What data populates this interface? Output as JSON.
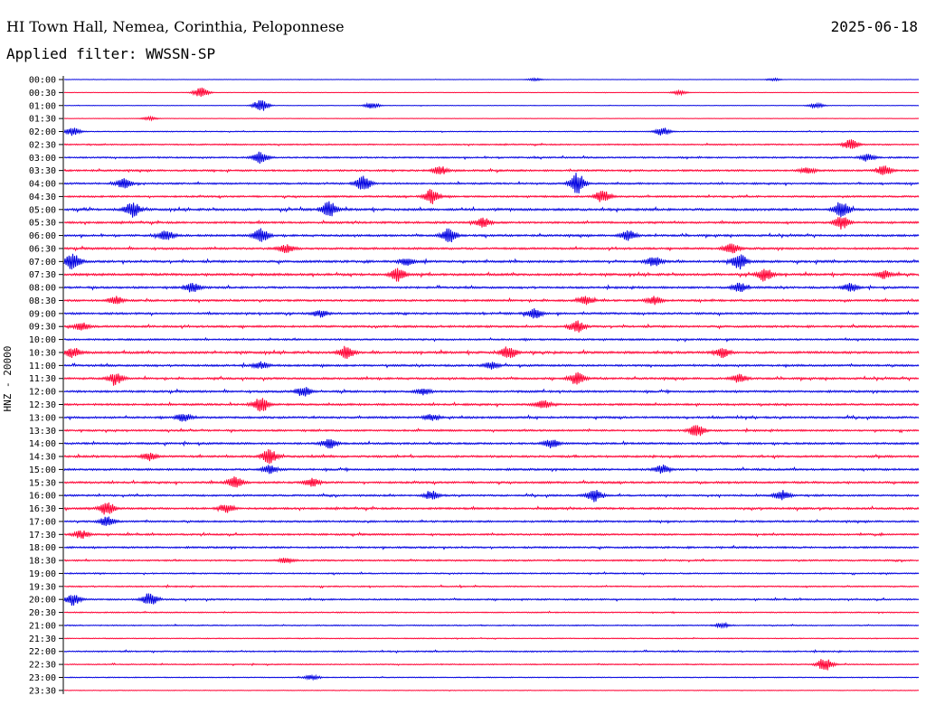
{
  "header": {
    "station": "HI Town Hall, Nemea, Corinthia, Peloponnese",
    "date": "2025-06-18",
    "filter": "Applied filter: WWSSN-SP"
  },
  "channel_label": "HNZ - 20000",
  "colors": {
    "trace_a": "#0000e0",
    "trace_b": "#ff0033",
    "background": "#ffffff",
    "text": "#000000"
  },
  "chart_data": {
    "type": "line",
    "title": "",
    "ylabel": "HNZ - 20000",
    "xlabel": "",
    "grid": false,
    "rows": [
      {
        "label": "00:00",
        "activity": 0.1,
        "events": [
          {
            "x": 0.55,
            "amp": 0.15
          },
          {
            "x": 0.83,
            "amp": 0.15
          }
        ]
      },
      {
        "label": "00:30",
        "activity": 0.1,
        "events": [
          {
            "x": 0.16,
            "amp": 0.6
          },
          {
            "x": 0.72,
            "amp": 0.25
          }
        ]
      },
      {
        "label": "01:00",
        "activity": 0.12,
        "events": [
          {
            "x": 0.23,
            "amp": 0.75
          },
          {
            "x": 0.36,
            "amp": 0.35
          },
          {
            "x": 0.88,
            "amp": 0.3
          }
        ]
      },
      {
        "label": "01:30",
        "activity": 0.12,
        "events": [
          {
            "x": 0.1,
            "amp": 0.2
          }
        ]
      },
      {
        "label": "02:00",
        "activity": 0.2,
        "events": [
          {
            "x": 0.01,
            "amp": 0.5
          },
          {
            "x": 0.7,
            "amp": 0.5
          }
        ]
      },
      {
        "label": "02:30",
        "activity": 0.3,
        "events": [
          {
            "x": 0.92,
            "amp": 0.6
          }
        ]
      },
      {
        "label": "03:00",
        "activity": 0.35,
        "events": [
          {
            "x": 0.23,
            "amp": 0.7
          },
          {
            "x": 0.94,
            "amp": 0.4
          }
        ]
      },
      {
        "label": "03:30",
        "activity": 0.4,
        "events": [
          {
            "x": 0.44,
            "amp": 0.5
          },
          {
            "x": 0.87,
            "amp": 0.4
          },
          {
            "x": 0.96,
            "amp": 0.6
          }
        ]
      },
      {
        "label": "04:00",
        "activity": 0.4,
        "events": [
          {
            "x": 0.07,
            "amp": 0.6
          },
          {
            "x": 0.35,
            "amp": 0.9
          },
          {
            "x": 0.6,
            "amp": 1.3
          }
        ]
      },
      {
        "label": "04:30",
        "activity": 0.4,
        "events": [
          {
            "x": 0.43,
            "amp": 0.9
          },
          {
            "x": 0.63,
            "amp": 0.8
          }
        ]
      },
      {
        "label": "05:00",
        "activity": 0.5,
        "events": [
          {
            "x": 0.08,
            "amp": 1.0
          },
          {
            "x": 0.31,
            "amp": 1.0
          },
          {
            "x": 0.91,
            "amp": 1.1
          }
        ]
      },
      {
        "label": "05:30",
        "activity": 0.45,
        "events": [
          {
            "x": 0.49,
            "amp": 0.6
          },
          {
            "x": 0.91,
            "amp": 0.8
          }
        ]
      },
      {
        "label": "06:00",
        "activity": 0.45,
        "events": [
          {
            "x": 0.12,
            "amp": 0.6
          },
          {
            "x": 0.23,
            "amp": 0.9
          },
          {
            "x": 0.45,
            "amp": 0.9
          },
          {
            "x": 0.66,
            "amp": 0.6
          }
        ]
      },
      {
        "label": "06:30",
        "activity": 0.45,
        "events": [
          {
            "x": 0.26,
            "amp": 0.5
          },
          {
            "x": 0.78,
            "amp": 0.7
          }
        ]
      },
      {
        "label": "07:00",
        "activity": 0.5,
        "events": [
          {
            "x": 0.01,
            "amp": 1.1
          },
          {
            "x": 0.4,
            "amp": 0.5
          },
          {
            "x": 0.69,
            "amp": 0.6
          },
          {
            "x": 0.79,
            "amp": 1.0
          }
        ]
      },
      {
        "label": "07:30",
        "activity": 0.5,
        "events": [
          {
            "x": 0.39,
            "amp": 0.8
          },
          {
            "x": 0.82,
            "amp": 0.8
          },
          {
            "x": 0.96,
            "amp": 0.5
          }
        ]
      },
      {
        "label": "08:00",
        "activity": 0.45,
        "events": [
          {
            "x": 0.15,
            "amp": 0.6
          },
          {
            "x": 0.79,
            "amp": 0.6
          },
          {
            "x": 0.92,
            "amp": 0.5
          }
        ]
      },
      {
        "label": "08:30",
        "activity": 0.45,
        "events": [
          {
            "x": 0.06,
            "amp": 0.5
          },
          {
            "x": 0.61,
            "amp": 0.5
          },
          {
            "x": 0.69,
            "amp": 0.5
          }
        ]
      },
      {
        "label": "09:00",
        "activity": 0.45,
        "events": [
          {
            "x": 0.3,
            "amp": 0.4
          },
          {
            "x": 0.55,
            "amp": 0.6
          }
        ]
      },
      {
        "label": "09:30",
        "activity": 0.45,
        "events": [
          {
            "x": 0.02,
            "amp": 0.5
          },
          {
            "x": 0.6,
            "amp": 0.7
          }
        ]
      },
      {
        "label": "10:00",
        "activity": 0.4,
        "events": []
      },
      {
        "label": "10:30",
        "activity": 0.5,
        "events": [
          {
            "x": 0.01,
            "amp": 0.6
          },
          {
            "x": 0.33,
            "amp": 0.8
          },
          {
            "x": 0.52,
            "amp": 0.8
          },
          {
            "x": 0.77,
            "amp": 0.6
          }
        ]
      },
      {
        "label": "11:00",
        "activity": 0.45,
        "events": [
          {
            "x": 0.23,
            "amp": 0.4
          },
          {
            "x": 0.5,
            "amp": 0.4
          }
        ]
      },
      {
        "label": "11:30",
        "activity": 0.45,
        "events": [
          {
            "x": 0.06,
            "amp": 0.7
          },
          {
            "x": 0.6,
            "amp": 0.7
          },
          {
            "x": 0.79,
            "amp": 0.5
          }
        ]
      },
      {
        "label": "12:00",
        "activity": 0.45,
        "events": [
          {
            "x": 0.28,
            "amp": 0.6
          },
          {
            "x": 0.42,
            "amp": 0.4
          }
        ]
      },
      {
        "label": "12:30",
        "activity": 0.45,
        "events": [
          {
            "x": 0.23,
            "amp": 0.9
          },
          {
            "x": 0.56,
            "amp": 0.5
          }
        ]
      },
      {
        "label": "13:00",
        "activity": 0.45,
        "events": [
          {
            "x": 0.14,
            "amp": 0.5
          },
          {
            "x": 0.43,
            "amp": 0.4
          }
        ]
      },
      {
        "label": "13:30",
        "activity": 0.4,
        "events": [
          {
            "x": 0.74,
            "amp": 0.8
          }
        ]
      },
      {
        "label": "14:00",
        "activity": 0.45,
        "events": [
          {
            "x": 0.31,
            "amp": 0.6
          },
          {
            "x": 0.57,
            "amp": 0.5
          }
        ]
      },
      {
        "label": "14:30",
        "activity": 0.45,
        "events": [
          {
            "x": 0.24,
            "amp": 0.9
          },
          {
            "x": 0.1,
            "amp": 0.4
          }
        ]
      },
      {
        "label": "15:00",
        "activity": 0.45,
        "events": [
          {
            "x": 0.24,
            "amp": 0.5
          },
          {
            "x": 0.7,
            "amp": 0.5
          }
        ]
      },
      {
        "label": "15:30",
        "activity": 0.45,
        "events": [
          {
            "x": 0.2,
            "amp": 0.7
          },
          {
            "x": 0.29,
            "amp": 0.5
          }
        ]
      },
      {
        "label": "16:00",
        "activity": 0.4,
        "events": [
          {
            "x": 0.43,
            "amp": 0.5
          },
          {
            "x": 0.62,
            "amp": 0.8
          },
          {
            "x": 0.84,
            "amp": 0.6
          }
        ]
      },
      {
        "label": "16:30",
        "activity": 0.45,
        "events": [
          {
            "x": 0.05,
            "amp": 0.8
          },
          {
            "x": 0.19,
            "amp": 0.5
          }
        ]
      },
      {
        "label": "17:00",
        "activity": 0.4,
        "events": [
          {
            "x": 0.05,
            "amp": 0.6
          }
        ]
      },
      {
        "label": "17:30",
        "activity": 0.4,
        "events": [
          {
            "x": 0.02,
            "amp": 0.5
          }
        ]
      },
      {
        "label": "18:00",
        "activity": 0.4,
        "events": []
      },
      {
        "label": "18:30",
        "activity": 0.35,
        "events": [
          {
            "x": 0.26,
            "amp": 0.3
          }
        ]
      },
      {
        "label": "19:00",
        "activity": 0.3,
        "events": []
      },
      {
        "label": "19:30",
        "activity": 0.3,
        "events": []
      },
      {
        "label": "20:00",
        "activity": 0.35,
        "events": [
          {
            "x": 0.01,
            "amp": 0.7
          },
          {
            "x": 0.1,
            "amp": 0.8
          }
        ]
      },
      {
        "label": "20:30",
        "activity": 0.25,
        "events": []
      },
      {
        "label": "21:00",
        "activity": 0.25,
        "events": [
          {
            "x": 0.77,
            "amp": 0.3
          }
        ]
      },
      {
        "label": "21:30",
        "activity": 0.2,
        "events": []
      },
      {
        "label": "22:00",
        "activity": 0.3,
        "events": []
      },
      {
        "label": "22:30",
        "activity": 0.25,
        "events": [
          {
            "x": 0.89,
            "amp": 0.8
          }
        ]
      },
      {
        "label": "23:00",
        "activity": 0.2,
        "events": [
          {
            "x": 0.29,
            "amp": 0.3
          }
        ]
      },
      {
        "label": "23:30",
        "activity": 0.15,
        "events": []
      }
    ]
  }
}
